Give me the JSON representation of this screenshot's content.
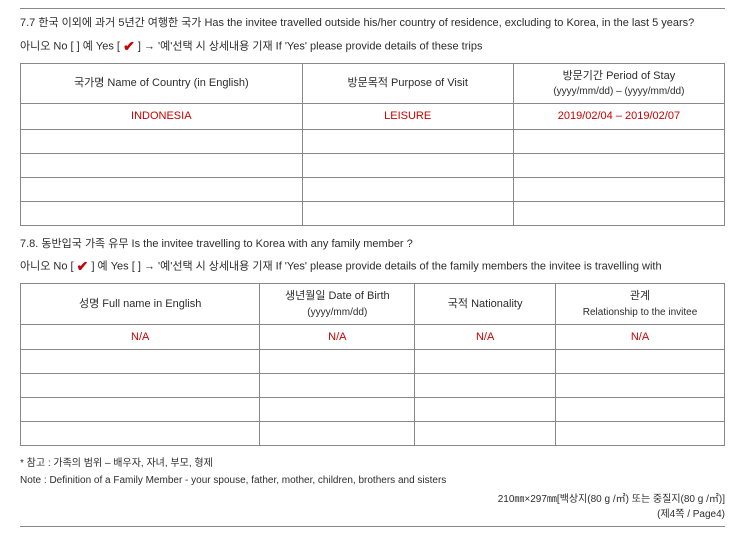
{
  "q77": {
    "question": "7.7 한국 이외에 과거 5년간 여행한 국가 Has the invitee travelled outside his/her country of residence, excluding to Korea, in the last 5 years?",
    "no_label": "아니오 No [    ]  예 Yes [ ",
    "yes_after": " ] → '예'선택 시 상세내용 기재 If 'Yes' please provide details of these trips",
    "check_mark": "✔",
    "headers": {
      "country": "국가명 Name of Country (in English)",
      "purpose": "방문목적 Purpose of Visit",
      "period": "방문기간 Period of Stay",
      "period_sub": "(yyyy/mm/dd) – (yyyy/mm/dd)"
    },
    "row": {
      "country": "INDONESIA",
      "purpose": "LEISURE",
      "period": "2019/02/04 – 2019/02/07"
    }
  },
  "q78": {
    "question": "7.8. 동반입국 가족 유무 Is the invitee travelling to Korea with any family member ?",
    "line2a": "아니오  No [ ",
    "check_mark": "✔",
    "line2b": " ] 예  Yes  [    ] → '예'선택 시 상세내용 기재 If 'Yes' please provide details of the family members the invitee is travelling with",
    "headers": {
      "name": "성명 Full name in English",
      "dob": "생년월일 Date of Birth",
      "dob_sub": "(yyyy/mm/dd)",
      "nat": "국적 Nationality",
      "rel": "관계",
      "rel_sub": "Relationship to the invitee"
    },
    "row": {
      "name": "N/A",
      "dob": "N/A",
      "nat": "N/A",
      "rel": "N/A"
    }
  },
  "notes": {
    "ko": "* 참고 : 가족의 범위 – 배우자, 자녀, 부모, 형제",
    "en": "Note : Definition of a Family Member - your spouse, father, mother, children, brothers and sisters"
  },
  "footer": {
    "paper": "210㎜×297㎜[백상지(80 g /㎡)  또는 중질지(80 g /㎡)]",
    "page": "(제4쪽 / Page4)"
  }
}
